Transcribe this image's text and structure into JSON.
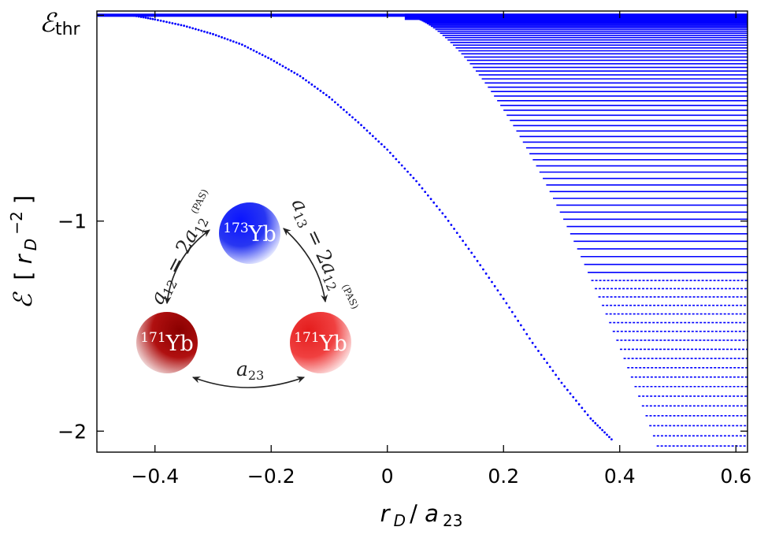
{
  "chart_data": {
    "type": "scatter",
    "xlabel_var": "r",
    "xlabel_sub": "D",
    "xlabel_sep": " / ",
    "xlabel_var2": "a",
    "xlabel_sub2": "23",
    "ylabel_sym": "ℰ",
    "ylabel_unit_open": "[ ",
    "ylabel_unit_var": "r",
    "ylabel_unit_sub": "D",
    "ylabel_unit_sup": "−2",
    "ylabel_unit_close": "]",
    "threshold_label_sym": "ℰ",
    "threshold_label_sub": "thr",
    "xlim": [
      -0.5,
      0.62
    ],
    "ylim": [
      -2.1,
      0.0
    ],
    "y_threshold": -0.02,
    "x_ticks": [
      {
        "value": -0.4,
        "label": "−0.4"
      },
      {
        "value": -0.2,
        "label": "−0.2"
      },
      {
        "value": 0,
        "label": "0"
      },
      {
        "value": 0.2,
        "label": "0.2"
      },
      {
        "value": 0.4,
        "label": "0.4"
      },
      {
        "value": 0.6,
        "label": "0.6"
      }
    ],
    "y_ticks": [
      {
        "value": -1,
        "label": "−1"
      },
      {
        "value": -2,
        "label": "−2"
      }
    ],
    "series": [
      {
        "kind": "deepest-level",
        "x": [
          -0.44,
          -0.4,
          -0.35,
          -0.3,
          -0.25,
          -0.2,
          -0.15,
          -0.1,
          -0.05,
          0.0,
          0.05,
          0.1,
          0.15,
          0.2,
          0.25,
          0.3,
          0.35,
          0.39
        ],
        "y": [
          -0.02,
          -0.04,
          -0.07,
          -0.11,
          -0.16,
          -0.23,
          -0.31,
          -0.41,
          -0.53,
          -0.66,
          -0.81,
          -0.98,
          -1.17,
          -1.37,
          -1.58,
          -1.77,
          -1.94,
          -2.05
        ]
      },
      {
        "kind": "efimov-fan",
        "onset_x": 0.03,
        "x_end": 0.62,
        "shape_power": 1.9
      }
    ],
    "color": "#0000ff",
    "grid": false
  },
  "inset": {
    "atoms": [
      {
        "mass": "173",
        "element": "Yb",
        "color": "#1f2ef0"
      },
      {
        "mass": "171",
        "element": "Yb",
        "color": "#b30000"
      },
      {
        "mass": "171",
        "element": "Yb",
        "color": "#ef2b2b"
      }
    ],
    "bond_left": {
      "var": "a",
      "sub": "12",
      "eq": " = 2",
      "var2": "a",
      "sub2": "12",
      "sup2": "(PAS)"
    },
    "bond_right": {
      "var": "a",
      "sub": "13",
      "eq": " = 2",
      "var2": "a",
      "sub2": "12",
      "sup2": "(PAS)"
    },
    "bond_bottom": {
      "var": "a",
      "sub": "23"
    }
  }
}
